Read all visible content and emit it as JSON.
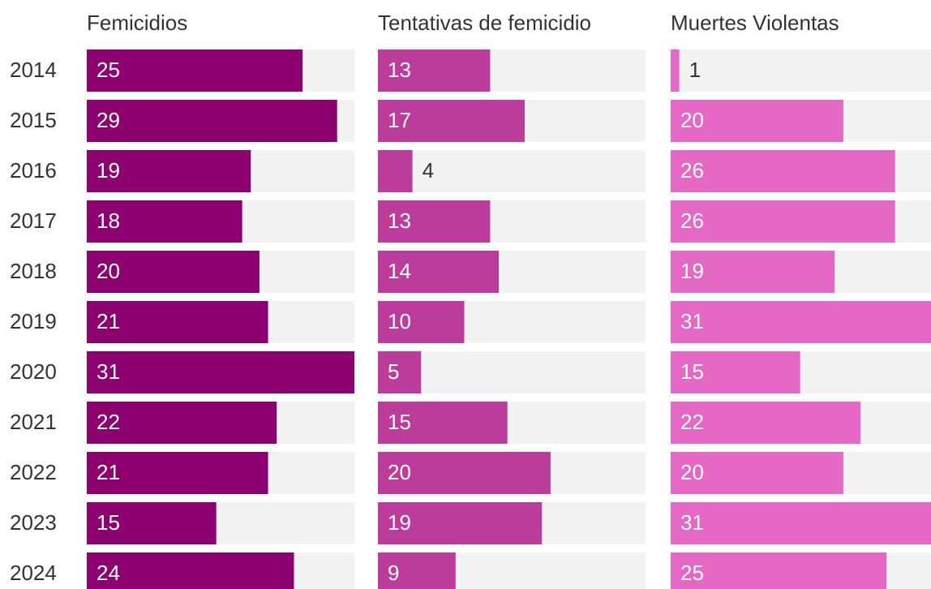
{
  "chart_data": [
    {
      "type": "bar",
      "title": "Femicidios",
      "categories": [
        "2014",
        "2015",
        "2016",
        "2017",
        "2018",
        "2019",
        "2020",
        "2021",
        "2022",
        "2023",
        "2024"
      ],
      "values": [
        25,
        29,
        19,
        18,
        20,
        21,
        31,
        22,
        21,
        15,
        24
      ],
      "color": "#8b006e",
      "xlim": [
        0,
        31
      ]
    },
    {
      "type": "bar",
      "title": "Tentativas de femicidio",
      "values": [
        13,
        17,
        4,
        13,
        14,
        10,
        5,
        15,
        20,
        19,
        9
      ],
      "color": "#bb3c9b",
      "xlim": [
        0,
        31
      ]
    },
    {
      "type": "bar",
      "title": "Muertes Violentas",
      "values": [
        1,
        20,
        26,
        26,
        19,
        31,
        15,
        22,
        20,
        31,
        25
      ],
      "color": "#e568c4",
      "xlim": [
        0,
        31
      ]
    }
  ]
}
